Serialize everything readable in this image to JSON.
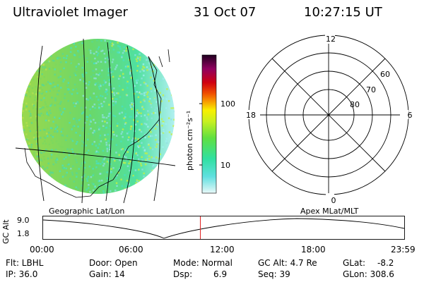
{
  "header": {
    "instrument": "Ultraviolet Imager",
    "date": "31 Oct 07",
    "time": "10:27:15 UT"
  },
  "colorbar": {
    "unit_label": "photon cm⁻²s⁻¹",
    "ticks": [
      "100",
      "10"
    ]
  },
  "polar_plot": {
    "mlt_labels": [
      "12",
      "18",
      "6",
      "0"
    ],
    "lat_labels": [
      "60",
      "70",
      "80"
    ]
  },
  "panel_labels": {
    "left": "Geographic Lat/Lon",
    "right": "Apex MLat/MLT"
  },
  "altitude_plot": {
    "ylabel": "GC Alt",
    "yticks": [
      "9.0",
      "1.8"
    ],
    "xticks": [
      "00:00",
      "06:00",
      "12:00",
      "18:00",
      "23:59"
    ],
    "marker_time_hours": 10.45,
    "marker_color": "#e02020"
  },
  "status": {
    "flt": "Flt: LBHL",
    "ip": "IP: 36.0",
    "door": "Door: Open",
    "gain": "Gain: 14",
    "mode": "Mode: Normal",
    "dsp": "Dsp:",
    "dsp_val": "6.9",
    "gcalt": "GC Alt: 4.7 Re",
    "seq": "Seq: 39",
    "glat": "GLat:",
    "glat_val": "-8.2",
    "glon": "GLon: 308.6"
  },
  "colors": {
    "low": "#a0f0f0",
    "mid": "#40e060",
    "high": "#f0a000",
    "top": "#200020"
  }
}
